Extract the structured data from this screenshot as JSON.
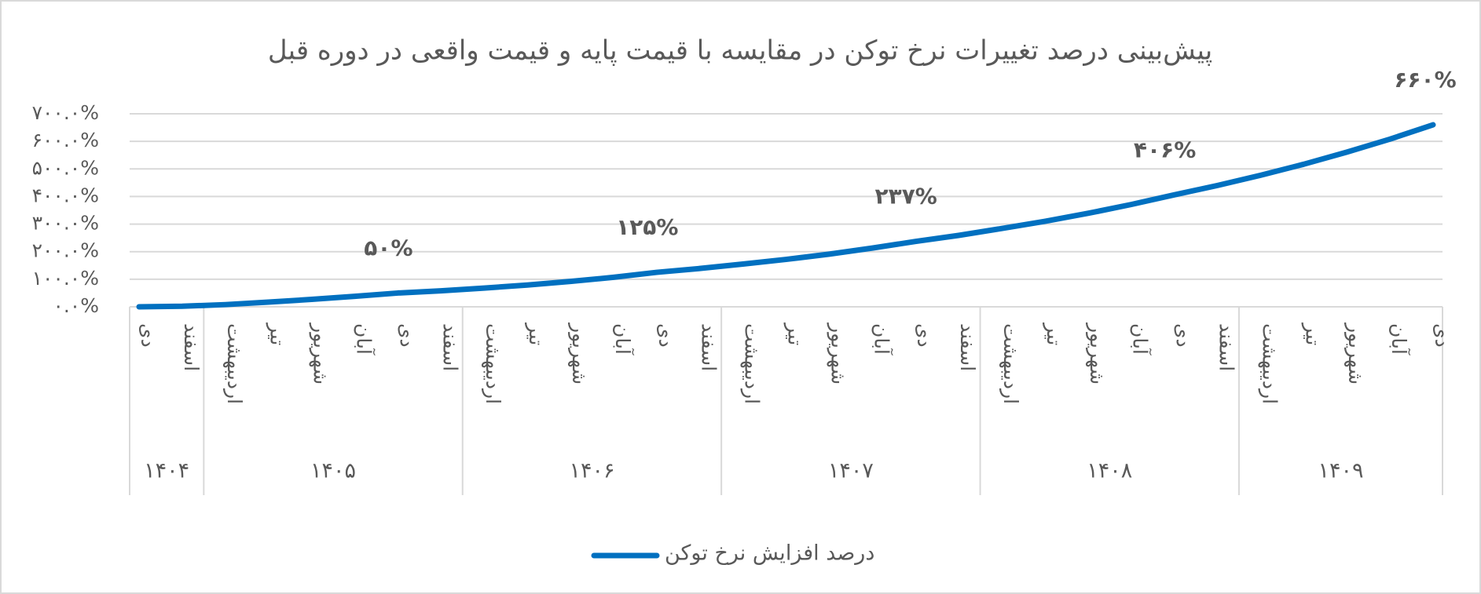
{
  "chart_data": {
    "type": "line",
    "title": "پیش‌بینی درصد تغییرات نرخ توکن در مقایسه با قیمت پایه و قیمت واقعی در دوره قبل",
    "categories": [
      "دی",
      "اسفند",
      "اردیبهشت",
      "تیر",
      "شهریور",
      "آبان",
      "دی",
      "اسفند",
      "اردیبهشت",
      "تیر",
      "شهریور",
      "آبان",
      "دی",
      "اسفند",
      "اردیبهشت",
      "تیر",
      "شهریور",
      "آبان",
      "دی",
      "اسفند",
      "اردیبهشت",
      "تیر",
      "شهریور",
      "آبان",
      "دی",
      "اسفند",
      "اردیبهشت",
      "تیر",
      "شهریور",
      "آبان",
      "دی"
    ],
    "category_years": [
      "۱۴۰۴",
      "۱۴۰۴",
      "۱۴۰۵",
      "۱۴۰۵",
      "۱۴۰۵",
      "۱۴۰۵",
      "۱۴۰۵",
      "۱۴۰۵",
      "۱۴۰۶",
      "۱۴۰۶",
      "۱۴۰۶",
      "۱۴۰۶",
      "۱۴۰۶",
      "۱۴۰۶",
      "۱۴۰۷",
      "۱۴۰۷",
      "۱۴۰۷",
      "۱۴۰۷",
      "۱۴۰۷",
      "۱۴۰۷",
      "۱۴۰۸",
      "۱۴۰۸",
      "۱۴۰۸",
      "۱۴۰۸",
      "۱۴۰۸",
      "۱۴۰۸",
      "۱۴۰۹",
      "۱۴۰۹",
      "۱۴۰۹",
      "۱۴۰۹",
      "۱۴۰۹"
    ],
    "series": [
      {
        "name": "درصد افزایش نرخ توکن",
        "color": "#0070c0",
        "values": [
          0,
          2,
          8,
          17,
          27,
          38,
          50,
          58,
          68,
          79,
          92,
          107,
          125,
          139,
          155,
          172,
          191,
          213,
          237,
          259,
          284,
          310,
          339,
          371,
          406,
          440,
          477,
          517,
          561,
          608,
          660
        ],
        "value_labels": [
          null,
          null,
          null,
          null,
          null,
          null,
          "۵۰%",
          null,
          null,
          null,
          null,
          null,
          "۱۲۵%",
          null,
          null,
          null,
          null,
          null,
          "۲۳۷%",
          null,
          null,
          null,
          null,
          null,
          "۴۰۶%",
          null,
          null,
          null,
          null,
          null,
          "۶۶۰%"
        ]
      }
    ],
    "ylim": [
      0,
      700
    ],
    "yticks": [
      {
        "value": 0,
        "label": "۰.۰%"
      },
      {
        "value": 100,
        "label": "۱۰۰.۰%"
      },
      {
        "value": 200,
        "label": "۲۰۰.۰%"
      },
      {
        "value": 300,
        "label": "۳۰۰.۰%"
      },
      {
        "value": 400,
        "label": "۴۰۰.۰%"
      },
      {
        "value": 500,
        "label": "۵۰۰.۰%"
      },
      {
        "value": 600,
        "label": "۶۰۰.۰%"
      },
      {
        "value": 700,
        "label": "۷۰۰.۰%"
      }
    ],
    "grid": true,
    "legend": "bottom"
  }
}
